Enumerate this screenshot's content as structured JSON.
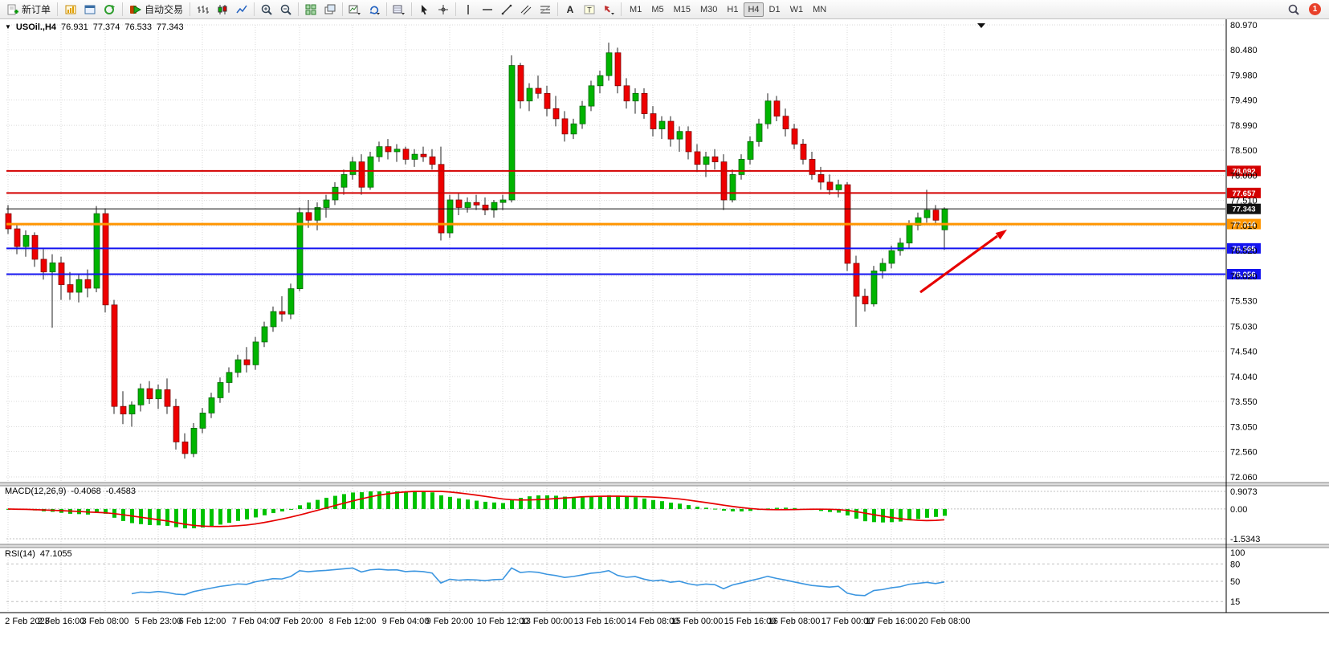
{
  "toolbar": {
    "new_order_label": "新订单",
    "autotrade_label": "自动交易",
    "icon_groups_first": [
      "charts",
      "new-window",
      "refresh"
    ],
    "icon_groups": [
      [
        "bar-chart",
        "candlesticks",
        "line-chart"
      ],
      [
        "zoom-in",
        "zoom-out"
      ],
      [
        "tile-windows",
        "cascade-windows"
      ],
      [
        "new-chart-dropdown",
        "cycle-dropdown"
      ],
      [
        "templates-dropdown"
      ],
      [
        "cursor",
        "crosshair"
      ],
      [
        "vertical-line",
        "horizontal-line",
        "trendline",
        "channel",
        "fibonacci"
      ],
      [
        "text",
        "text-label",
        "arrows-dropdown"
      ]
    ],
    "timeframes": [
      "M1",
      "M5",
      "M15",
      "M30",
      "H1",
      "H4",
      "D1",
      "W1",
      "MN"
    ],
    "active_timeframe": "H4",
    "badge_count": "1"
  },
  "chart_header": {
    "title": "USOil.,H4",
    "open": "76.931",
    "high": "77.374",
    "low": "76.533",
    "close": "77.343"
  },
  "chart_data": {
    "type": "candlestick",
    "symbol": "USOil",
    "timeframe": "H4",
    "price_axis": {
      "max": 80.97,
      "min": 72.06,
      "labels": [
        "80.970",
        "80.480",
        "79.980",
        "79.490",
        "78.990",
        "78.500",
        "78.000",
        "77.510",
        "77.010",
        "76.520",
        "76.020",
        "75.530",
        "75.030",
        "74.540",
        "74.040",
        "73.550",
        "73.050",
        "72.560",
        "72.060"
      ]
    },
    "time_labels": [
      "2 Feb 2023",
      "2 Feb 16:00",
      "3 Feb 08:00",
      "5 Feb 23:00",
      "6 Feb 12:00",
      "7 Feb 04:00",
      "7 Feb 20:00",
      "8 Feb 12:00",
      "9 Feb 04:00",
      "9 Feb 20:00",
      "10 Feb 12:00",
      "13 Feb 00:00",
      "13 Feb 16:00",
      "14 Feb 08:00",
      "15 Feb 00:00",
      "15 Feb 16:00",
      "16 Feb 08:00",
      "17 Feb 00:00",
      "17 Feb 16:00",
      "20 Feb 08:00"
    ],
    "horizontal_lines": [
      {
        "price": 78.092,
        "label": "78.092",
        "color": "#d40000",
        "width": 2
      },
      {
        "price": 77.657,
        "label": "77.657",
        "color": "#d40000",
        "width": 2
      },
      {
        "price": 77.343,
        "label": "77.343",
        "color": "#111111",
        "width": 1,
        "role": "current-price"
      },
      {
        "price": 77.044,
        "label": "77.044",
        "color": "#ff9500",
        "width": 3
      },
      {
        "price": 76.565,
        "label": "76.565",
        "color": "#1414f0",
        "width": 2
      },
      {
        "price": 76.056,
        "label": "76.056",
        "color": "#1414f0",
        "width": 2
      }
    ],
    "candles": [
      [
        77.25,
        77.42,
        76.85,
        76.95
      ],
      [
        76.95,
        77.05,
        76.45,
        76.6
      ],
      [
        76.6,
        76.92,
        76.4,
        76.82
      ],
      [
        76.82,
        76.88,
        76.2,
        76.35
      ],
      [
        76.35,
        76.55,
        75.95,
        76.1
      ],
      [
        76.1,
        76.45,
        75.0,
        76.28
      ],
      [
        76.28,
        76.4,
        75.55,
        75.85
      ],
      [
        75.85,
        76.1,
        75.55,
        75.7
      ],
      [
        75.7,
        76.05,
        75.5,
        75.95
      ],
      [
        75.95,
        76.15,
        75.6,
        75.78
      ],
      [
        75.78,
        77.4,
        75.7,
        77.25
      ],
      [
        77.25,
        77.35,
        75.3,
        75.45
      ],
      [
        75.45,
        75.55,
        73.3,
        73.45
      ],
      [
        73.45,
        73.75,
        73.1,
        73.3
      ],
      [
        73.3,
        73.55,
        73.05,
        73.48
      ],
      [
        73.48,
        73.9,
        73.35,
        73.8
      ],
      [
        73.8,
        73.95,
        73.5,
        73.6
      ],
      [
        73.6,
        73.88,
        73.4,
        73.78
      ],
      [
        73.78,
        74.0,
        73.3,
        73.45
      ],
      [
        73.45,
        73.6,
        72.6,
        72.75
      ],
      [
        72.75,
        72.92,
        72.42,
        72.52
      ],
      [
        72.52,
        73.12,
        72.45,
        73.02
      ],
      [
        73.02,
        73.42,
        72.92,
        73.32
      ],
      [
        73.32,
        73.72,
        73.22,
        73.62
      ],
      [
        73.62,
        74.02,
        73.52,
        73.92
      ],
      [
        73.92,
        74.22,
        73.72,
        74.12
      ],
      [
        74.12,
        74.47,
        74.02,
        74.37
      ],
      [
        74.37,
        74.62,
        74.12,
        74.27
      ],
      [
        74.27,
        74.82,
        74.17,
        74.72
      ],
      [
        74.72,
        75.12,
        74.62,
        75.02
      ],
      [
        75.02,
        75.42,
        74.92,
        75.32
      ],
      [
        75.32,
        75.62,
        75.12,
        75.27
      ],
      [
        75.27,
        75.87,
        75.17,
        75.77
      ],
      [
        75.77,
        77.37,
        75.72,
        77.27
      ],
      [
        77.27,
        77.52,
        76.97,
        77.12
      ],
      [
        77.12,
        77.47,
        76.92,
        77.37
      ],
      [
        77.37,
        77.62,
        77.17,
        77.52
      ],
      [
        77.52,
        77.87,
        77.42,
        77.77
      ],
      [
        77.77,
        78.12,
        77.62,
        78.02
      ],
      [
        78.02,
        78.37,
        77.92,
        78.27
      ],
      [
        78.27,
        78.42,
        77.62,
        77.77
      ],
      [
        77.77,
        78.47,
        77.72,
        78.37
      ],
      [
        78.37,
        78.67,
        78.27,
        78.57
      ],
      [
        78.57,
        78.72,
        78.32,
        78.47
      ],
      [
        78.47,
        78.62,
        78.27,
        78.52
      ],
      [
        78.52,
        78.57,
        78.22,
        78.32
      ],
      [
        78.32,
        78.52,
        78.17,
        78.42
      ],
      [
        78.42,
        78.57,
        78.27,
        78.37
      ],
      [
        78.37,
        78.52,
        78.12,
        78.22
      ],
      [
        78.22,
        78.57,
        76.72,
        76.87
      ],
      [
        76.87,
        77.62,
        76.77,
        77.52
      ],
      [
        77.52,
        77.67,
        77.22,
        77.37
      ],
      [
        77.37,
        77.57,
        77.27,
        77.47
      ],
      [
        77.47,
        77.62,
        77.32,
        77.42
      ],
      [
        77.42,
        77.57,
        77.22,
        77.32
      ],
      [
        77.32,
        77.52,
        77.17,
        77.47
      ],
      [
        77.47,
        77.62,
        77.32,
        77.52
      ],
      [
        77.52,
        80.37,
        77.47,
        80.17
      ],
      [
        80.17,
        80.22,
        79.32,
        79.47
      ],
      [
        79.47,
        79.82,
        79.27,
        79.72
      ],
      [
        79.72,
        79.97,
        79.52,
        79.62
      ],
      [
        79.62,
        79.77,
        79.17,
        79.32
      ],
      [
        79.32,
        79.57,
        78.97,
        79.12
      ],
      [
        79.12,
        79.27,
        78.67,
        78.82
      ],
      [
        78.82,
        79.12,
        78.72,
        79.02
      ],
      [
        79.02,
        79.47,
        78.92,
        79.37
      ],
      [
        79.37,
        79.87,
        79.27,
        79.77
      ],
      [
        79.77,
        80.07,
        79.62,
        79.97
      ],
      [
        79.97,
        80.62,
        79.87,
        80.42
      ],
      [
        80.42,
        80.52,
        79.62,
        79.77
      ],
      [
        79.77,
        79.92,
        79.32,
        79.47
      ],
      [
        79.47,
        79.72,
        79.22,
        79.62
      ],
      [
        79.62,
        79.72,
        79.12,
        79.22
      ],
      [
        79.22,
        79.37,
        78.77,
        78.92
      ],
      [
        78.92,
        79.17,
        78.72,
        79.07
      ],
      [
        79.07,
        79.17,
        78.57,
        78.72
      ],
      [
        78.72,
        78.97,
        78.47,
        78.87
      ],
      [
        78.87,
        78.97,
        78.32,
        78.47
      ],
      [
        78.47,
        78.62,
        78.07,
        78.22
      ],
      [
        78.22,
        78.47,
        77.97,
        78.37
      ],
      [
        78.37,
        78.52,
        78.12,
        78.27
      ],
      [
        78.27,
        78.42,
        77.32,
        77.52
      ],
      [
        77.52,
        78.12,
        77.47,
        78.02
      ],
      [
        78.02,
        78.42,
        77.92,
        78.32
      ],
      [
        78.32,
        78.77,
        78.22,
        78.67
      ],
      [
        78.67,
        79.12,
        78.57,
        79.02
      ],
      [
        79.02,
        79.62,
        78.92,
        79.47
      ],
      [
        79.47,
        79.57,
        79.07,
        79.17
      ],
      [
        79.17,
        79.32,
        78.77,
        78.92
      ],
      [
        78.92,
        79.02,
        78.52,
        78.62
      ],
      [
        78.62,
        78.72,
        78.22,
        78.32
      ],
      [
        78.32,
        78.47,
        77.92,
        78.02
      ],
      [
        78.02,
        78.17,
        77.72,
        77.87
      ],
      [
        77.87,
        78.02,
        77.62,
        77.72
      ],
      [
        77.72,
        77.92,
        77.57,
        77.82
      ],
      [
        77.82,
        77.87,
        76.12,
        76.27
      ],
      [
        76.27,
        76.42,
        75.02,
        75.62
      ],
      [
        75.62,
        75.77,
        75.32,
        75.47
      ],
      [
        75.47,
        76.22,
        75.42,
        76.12
      ],
      [
        76.12,
        76.37,
        75.97,
        76.27
      ],
      [
        76.27,
        76.62,
        76.17,
        76.52
      ],
      [
        76.52,
        76.77,
        76.42,
        76.67
      ],
      [
        76.67,
        77.12,
        76.57,
        77.02
      ],
      [
        77.02,
        77.27,
        76.92,
        77.17
      ],
      [
        77.17,
        77.72,
        77.07,
        77.32
      ],
      [
        77.32,
        77.42,
        77.02,
        77.12
      ],
      [
        76.931,
        77.374,
        76.533,
        77.343
      ]
    ],
    "indicators": [
      {
        "name": "MACD",
        "label": "MACD(12,26,9)",
        "value_macd": "-0.4068",
        "value_signal": "-0.4583",
        "params": [
          12,
          26,
          9
        ],
        "scale": {
          "max": 0.9073,
          "zero": 0,
          "min": -1.5343
        },
        "scale_labels": [
          "0.9073",
          "0.00",
          "-1.5343"
        ]
      },
      {
        "name": "RSI",
        "label": "RSI(14)",
        "value": "47.1055",
        "period": 14,
        "levels": [
          100,
          80,
          50,
          15
        ],
        "scale_labels": [
          "100",
          "80",
          "50",
          "15"
        ]
      }
    ],
    "annotation_arrow": {
      "color": "#e60000"
    }
  },
  "colors": {
    "bull": "#00b400",
    "bear": "#ee0000",
    "wick": "#222222",
    "macd_hist": "#00c200",
    "macd_signal": "#e60000",
    "rsi_line": "#3c96e0",
    "grid": "#d9d9d9",
    "level_dash": "#c0c0c0"
  }
}
